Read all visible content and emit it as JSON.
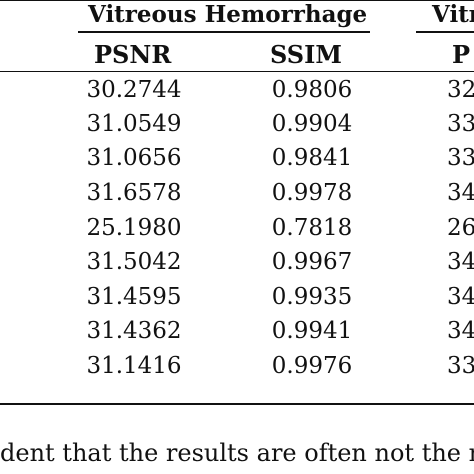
{
  "table": {
    "groups": [
      {
        "label": "Vitreous Hemorrhage"
      },
      {
        "label": "Vitr"
      }
    ],
    "columns": [
      "PSNR",
      "SSIM",
      "P"
    ],
    "rows": [
      {
        "psnr": "30.2744",
        "ssim": "0.9806",
        "next": "32"
      },
      {
        "psnr": "31.0549",
        "ssim": "0.9904",
        "next": "33"
      },
      {
        "psnr": "31.0656",
        "ssim": "0.9841",
        "next": "33"
      },
      {
        "psnr": "31.6578",
        "ssim": "0.9978",
        "next": "34"
      },
      {
        "psnr": "25.1980",
        "ssim": "0.7818",
        "next": "26"
      },
      {
        "psnr": "31.5042",
        "ssim": "0.9967",
        "next": "34"
      },
      {
        "psnr": "31.4595",
        "ssim": "0.9935",
        "next": "34"
      },
      {
        "psnr": "31.4362",
        "ssim": "0.9941",
        "next": "34"
      },
      {
        "psnr": "31.1416",
        "ssim": "0.9976",
        "next": "33"
      }
    ]
  },
  "caption": "dent that the results are often not the m"
}
